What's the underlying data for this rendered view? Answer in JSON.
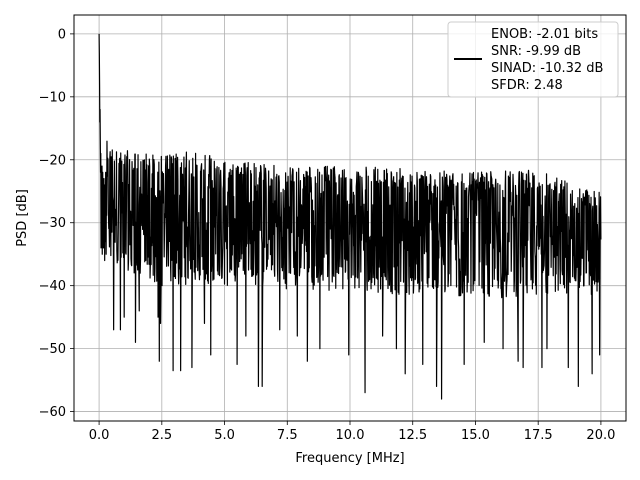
{
  "chart_data": {
    "type": "line",
    "title": "",
    "xlabel": "Frequency [MHz]",
    "ylabel": "PSD [dB]",
    "xlim": [
      -1.0,
      21.0
    ],
    "ylim": [
      -61.5,
      3.0
    ],
    "xticks": [
      0.0,
      2.5,
      5.0,
      7.5,
      10.0,
      12.5,
      15.0,
      17.5,
      20.0
    ],
    "xtick_labels": [
      "0.0",
      "2.5",
      "5.0",
      "7.5",
      "10.0",
      "12.5",
      "15.0",
      "17.5",
      "20.0"
    ],
    "yticks": [
      0,
      -10,
      -20,
      -30,
      -40,
      -50,
      -60
    ],
    "ytick_labels": [
      "0",
      "−10",
      "−20",
      "−30",
      "−40",
      "−50",
      "−60"
    ],
    "grid": true,
    "legend": {
      "placement": "top-right",
      "lines": [
        "ENOB: -2.01 bits",
        "SNR: -9.99 dB",
        "SINAD: -10.32 dB",
        "SFDR: 2.48"
      ]
    },
    "series": [
      {
        "color": "#000000",
        "x_start": 0.0,
        "x_end": 20.0,
        "y_head": [
          0,
          -3,
          -8,
          -14,
          -12,
          -17,
          -22,
          -19,
          -34,
          -26,
          -24,
          -33,
          -21,
          -35,
          -28,
          -22,
          -30,
          -25,
          -34,
          -27,
          -23,
          -31,
          -26,
          -36,
          -24,
          -28,
          -33,
          -22,
          -29,
          -35,
          -25
        ],
        "upper_envelope": [
          [
            0.3,
            -17
          ],
          [
            1.0,
            -18.5
          ],
          [
            2.0,
            -19
          ],
          [
            3.0,
            -19
          ],
          [
            4.0,
            -18.5
          ],
          [
            5.0,
            -20
          ],
          [
            7.5,
            -21
          ],
          [
            10.0,
            -21
          ],
          [
            12.5,
            -21.5
          ],
          [
            15.0,
            -22
          ],
          [
            17.5,
            -21.5
          ],
          [
            20.0,
            -25
          ]
        ],
        "lower_envelope": [
          [
            0.3,
            -36
          ],
          [
            2.5,
            -40
          ],
          [
            5.0,
            -40
          ],
          [
            10.0,
            -41
          ],
          [
            15.0,
            -42
          ],
          [
            20.0,
            -42
          ]
        ],
        "dips": [
          [
            0.58,
            -47
          ],
          [
            0.85,
            -47
          ],
          [
            1.0,
            -45
          ],
          [
            1.45,
            -49
          ],
          [
            1.6,
            -44
          ],
          [
            2.35,
            -45
          ],
          [
            2.45,
            -46
          ],
          [
            2.4,
            -52
          ],
          [
            2.95,
            -53.5
          ],
          [
            3.25,
            -53.5
          ],
          [
            3.7,
            -53
          ],
          [
            4.2,
            -46
          ],
          [
            4.45,
            -51
          ],
          [
            5.5,
            -52.5
          ],
          [
            5.85,
            -48
          ],
          [
            6.35,
            -56
          ],
          [
            6.5,
            -56
          ],
          [
            7.2,
            -47
          ],
          [
            7.9,
            -48
          ],
          [
            8.3,
            -52
          ],
          [
            8.8,
            -50
          ],
          [
            9.95,
            -51
          ],
          [
            10.6,
            -57
          ],
          [
            11.3,
            -48
          ],
          [
            11.85,
            -50
          ],
          [
            12.2,
            -54
          ],
          [
            12.9,
            -52.5
          ],
          [
            13.45,
            -56
          ],
          [
            13.65,
            -58
          ],
          [
            14.55,
            -52.5
          ],
          [
            15.35,
            -49
          ],
          [
            16.1,
            -50
          ],
          [
            16.7,
            -52
          ],
          [
            16.9,
            -53
          ],
          [
            17.65,
            -53
          ],
          [
            17.85,
            -50
          ],
          [
            18.7,
            -53
          ],
          [
            19.1,
            -56
          ],
          [
            19.65,
            -54
          ],
          [
            19.95,
            -51
          ]
        ]
      }
    ]
  }
}
